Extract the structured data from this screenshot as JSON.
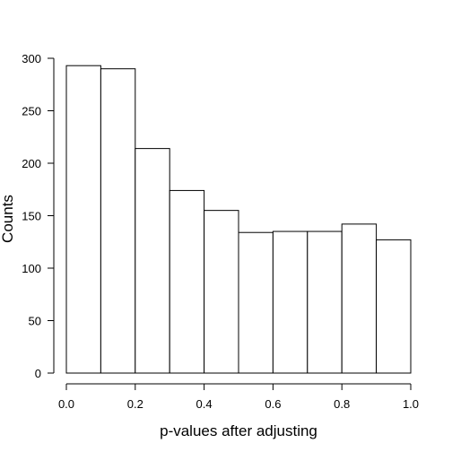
{
  "chart_data": {
    "type": "bar",
    "title": "",
    "xlabel": "p-values after adjusting",
    "ylabel": "Counts",
    "bins": [
      {
        "x0": 0.0,
        "x1": 0.1,
        "count": 293
      },
      {
        "x0": 0.1,
        "x1": 0.2,
        "count": 290
      },
      {
        "x0": 0.2,
        "x1": 0.3,
        "count": 214
      },
      {
        "x0": 0.3,
        "x1": 0.4,
        "count": 174
      },
      {
        "x0": 0.4,
        "x1": 0.5,
        "count": 155
      },
      {
        "x0": 0.5,
        "x1": 0.6,
        "count": 134
      },
      {
        "x0": 0.6,
        "x1": 0.7,
        "count": 135
      },
      {
        "x0": 0.7,
        "x1": 0.8,
        "count": 135
      },
      {
        "x0": 0.8,
        "x1": 0.9,
        "count": 142
      },
      {
        "x0": 0.9,
        "x1": 1.0,
        "count": 127
      }
    ],
    "xlim": [
      0,
      1
    ],
    "ylim": [
      0,
      300
    ],
    "x_ticks": [
      "0.0",
      "0.2",
      "0.4",
      "0.6",
      "0.8",
      "1.0"
    ],
    "y_ticks": [
      "0",
      "50",
      "100",
      "150",
      "200",
      "250",
      "300"
    ],
    "grid": false,
    "colors": {
      "bar_fill": "#ffffff",
      "bar_stroke": "#000000"
    }
  }
}
